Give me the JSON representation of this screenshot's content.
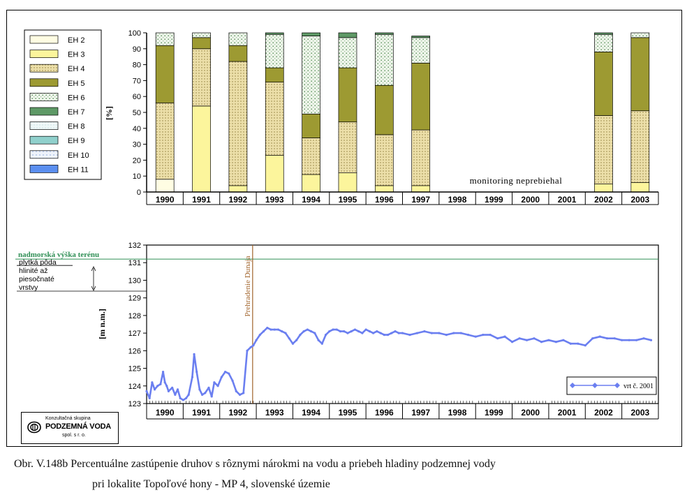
{
  "colors": {
    "EH 2": "#fffde3",
    "EH 3": "#fcf59c",
    "EH 4": "#ecdfa9",
    "EH 5": "#9d9a32",
    "EH 6": "#e6f0e6",
    "EH 7": "#5e9966",
    "EH 8": "#edf7f7",
    "EH 9": "#90d0cc",
    "EH 10": "#e8eefc",
    "EH 11": "#5b8ff0",
    "series_line": "#6b7ff0",
    "terrain_line": "#2f8f55",
    "dam_line": "#a0632a",
    "dam_label": "#a0632a"
  },
  "chart_data": [
    {
      "type": "bar",
      "stacked": true,
      "ylabel": "[%]",
      "ylim": [
        0,
        100
      ],
      "yticks": [
        0,
        10,
        20,
        30,
        40,
        50,
        60,
        70,
        80,
        90,
        100
      ],
      "categories": [
        "1990",
        "1991",
        "1992",
        "1993",
        "1994",
        "1995",
        "1996",
        "1997",
        "1998",
        "1999",
        "2000",
        "2001",
        "2002",
        "2003"
      ],
      "legend": [
        "EH 2",
        "EH 3",
        "EH 4",
        "EH 5",
        "EH 6",
        "EH 7",
        "EH 8",
        "EH 9",
        "EH 10",
        "EH 11"
      ],
      "legend_position": "top-left",
      "annotation": "monitoring neprebiehal",
      "series": [
        {
          "name": "EH 2",
          "values": [
            8,
            0,
            0,
            0,
            0,
            0,
            0,
            0,
            null,
            null,
            null,
            null,
            0,
            0
          ]
        },
        {
          "name": "EH 3",
          "values": [
            0,
            54,
            4,
            23,
            11,
            12,
            4,
            4,
            null,
            null,
            null,
            null,
            5,
            6
          ]
        },
        {
          "name": "EH 4",
          "values": [
            48,
            36,
            78,
            46,
            23,
            32,
            32,
            35,
            null,
            null,
            null,
            null,
            43,
            45
          ]
        },
        {
          "name": "EH 5",
          "values": [
            36,
            7,
            10,
            9,
            15,
            34,
            31,
            42,
            null,
            null,
            null,
            null,
            40,
            46
          ]
        },
        {
          "name": "EH 6",
          "values": [
            8,
            3,
            8,
            21,
            49,
            19,
            32,
            16,
            null,
            null,
            null,
            null,
            11,
            3
          ]
        },
        {
          "name": "EH 7",
          "values": [
            0,
            0,
            0,
            1,
            2,
            3,
            1,
            1,
            null,
            null,
            null,
            null,
            1,
            0
          ]
        },
        {
          "name": "EH 8",
          "values": [
            0,
            0,
            0,
            0,
            0,
            0,
            0,
            0,
            null,
            null,
            null,
            null,
            0,
            0
          ]
        },
        {
          "name": "EH 9",
          "values": [
            0,
            0,
            0,
            0,
            0,
            0,
            0,
            0,
            null,
            null,
            null,
            null,
            0,
            0
          ]
        },
        {
          "name": "EH 10",
          "values": [
            0,
            0,
            0,
            0,
            0,
            0,
            0,
            0,
            null,
            null,
            null,
            null,
            0,
            0
          ]
        },
        {
          "name": "EH 11",
          "values": [
            0,
            0,
            0,
            0,
            0,
            0,
            0,
            0,
            null,
            null,
            null,
            null,
            0,
            0
          ]
        }
      ]
    },
    {
      "type": "line",
      "ylabel": "[m n.m.]",
      "ylim": [
        123,
        132
      ],
      "yticks": [
        123,
        124,
        125,
        126,
        127,
        128,
        129,
        130,
        131,
        132
      ],
      "xlim": [
        1990,
        2004
      ],
      "categories": [
        "1990",
        "1991",
        "1992",
        "1993",
        "1994",
        "1995",
        "1996",
        "1997",
        "1998",
        "1999",
        "2000",
        "2001",
        "2002",
        "2003"
      ],
      "terrain_label": "nadmorská výška terénu",
      "terrain_level": 131.2,
      "layer_labels": [
        "plytká pôda",
        "hlinité až",
        "piesočnaté",
        "vrstvy"
      ],
      "dam_label": "Prehradenie Dunaja",
      "dam_x": 1992.9,
      "series": [
        {
          "name": "vrt č. 2001",
          "x": [
            1990.0,
            1990.08,
            1990.15,
            1990.22,
            1990.3,
            1990.38,
            1990.45,
            1990.5,
            1990.55,
            1990.6,
            1990.7,
            1990.78,
            1990.85,
            1990.92,
            1991.0,
            1991.08,
            1991.15,
            1991.25,
            1991.3,
            1991.37,
            1991.45,
            1991.52,
            1991.6,
            1991.7,
            1991.78,
            1991.85,
            1991.95,
            1992.05,
            1992.15,
            1992.25,
            1992.35,
            1992.45,
            1992.55,
            1992.65,
            1992.75,
            1992.85,
            1992.92,
            1993.0,
            1993.1,
            1993.2,
            1993.3,
            1993.4,
            1993.5,
            1993.6,
            1993.7,
            1993.8,
            1993.9,
            1994.0,
            1994.1,
            1994.2,
            1994.3,
            1994.4,
            1994.5,
            1994.6,
            1994.7,
            1994.8,
            1994.9,
            1995.0,
            1995.1,
            1995.2,
            1995.3,
            1995.4,
            1995.5,
            1995.6,
            1995.7,
            1995.8,
            1995.9,
            1996.0,
            1996.1,
            1996.2,
            1996.3,
            1996.4,
            1996.5,
            1996.6,
            1996.7,
            1996.8,
            1996.9,
            1997.0,
            1997.2,
            1997.4,
            1997.6,
            1997.8,
            1998.0,
            1998.2,
            1998.4,
            1998.6,
            1998.8,
            1999.0,
            1999.2,
            1999.4,
            1999.6,
            1999.8,
            2000.0,
            2000.2,
            2000.4,
            2000.6,
            2000.8,
            2001.0,
            2001.2,
            2001.4,
            2001.6,
            2001.8,
            2002.0,
            2002.2,
            2002.4,
            2002.6,
            2002.8,
            2003.0,
            2003.2,
            2003.4,
            2003.6,
            2003.8
          ],
          "y": [
            123.7,
            123.3,
            124.2,
            123.8,
            124.0,
            124.1,
            124.8,
            124.2,
            124.0,
            123.7,
            123.9,
            123.5,
            123.8,
            123.3,
            123.2,
            123.3,
            123.5,
            124.5,
            125.8,
            124.8,
            123.8,
            123.5,
            123.6,
            123.9,
            123.4,
            124.2,
            124.0,
            124.5,
            124.8,
            124.7,
            124.3,
            123.7,
            123.5,
            123.6,
            126.0,
            126.2,
            126.3,
            126.6,
            126.9,
            127.1,
            127.3,
            127.2,
            127.2,
            127.2,
            127.1,
            127.0,
            126.7,
            126.4,
            126.6,
            126.9,
            127.1,
            127.2,
            127.1,
            127.0,
            126.6,
            126.4,
            126.9,
            127.1,
            127.2,
            127.2,
            127.1,
            127.1,
            127.0,
            127.1,
            127.2,
            127.1,
            127.0,
            127.2,
            127.1,
            127.0,
            127.1,
            127.0,
            126.9,
            126.9,
            127.0,
            127.1,
            127.0,
            127.0,
            126.9,
            127.0,
            127.1,
            127.0,
            127.0,
            126.9,
            127.0,
            127.0,
            126.9,
            126.8,
            126.9,
            126.9,
            126.7,
            126.8,
            126.5,
            126.7,
            126.6,
            126.7,
            126.5,
            126.6,
            126.5,
            126.6,
            126.4,
            126.4,
            126.3,
            126.7,
            126.8,
            126.7,
            126.7,
            126.6,
            126.6,
            126.6,
            126.7,
            126.6
          ]
        }
      ]
    }
  ],
  "logo": {
    "line1": "Konzultačná skupina",
    "line2": "PODZEMNÁ VODA",
    "line3": "spol. s r. o."
  },
  "caption": {
    "line1": "Obr. V.148b Percentuálne zastúpenie druhov s rôznymi nárokmi na vodu a priebeh hladiny podzemnej vody",
    "line2": "pri lokalite Topoľové hony - MP 4, slovenské územie"
  }
}
